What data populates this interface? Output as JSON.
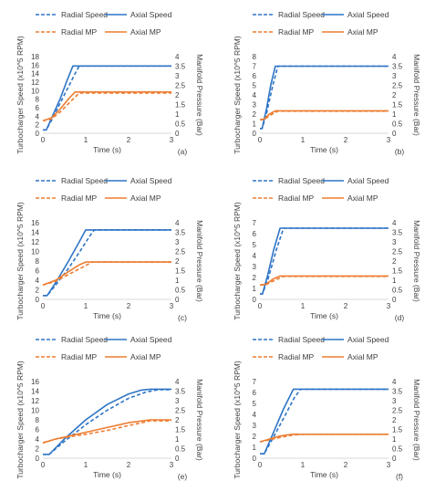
{
  "colors": {
    "radial": "#2e75c6",
    "axial": "#4a7fc1",
    "mp": "#ed7d31",
    "axis": "#d9d9d9",
    "text": "#404040"
  },
  "legend": {
    "radial_speed": "Radial Speed",
    "axial_speed": "Axial Speed",
    "radial_mp": "Radial MP",
    "axial_mp": "Axial MP"
  },
  "chart_data": [
    {
      "panel": "(a)",
      "type": "line",
      "xlabel": "Time (s)",
      "ylabel": "Turbocharger Speed (x10^5 RPM)",
      "y2label": "Manifold Pressure (Bar)",
      "xlim": [
        0,
        3
      ],
      "xticks": [
        0,
        1,
        2,
        3
      ],
      "ylim": [
        0,
        18
      ],
      "yticks": [
        0,
        2,
        4,
        6,
        8,
        10,
        12,
        14,
        16,
        18
      ],
      "y2lim": [
        0,
        4
      ],
      "y2ticks": [
        0,
        0.5,
        1,
        1.5,
        2,
        2.5,
        3,
        3.5,
        4
      ],
      "series": [
        {
          "name": "Radial Speed",
          "axis": "left",
          "style": "dashed",
          "color": "#2e75c6",
          "x": [
            0,
            0.08,
            0.2,
            0.4,
            0.6,
            0.75,
            0.85,
            3
          ],
          "y": [
            0.8,
            0.8,
            3.0,
            7.0,
            11.0,
            14.0,
            15.8,
            15.8
          ]
        },
        {
          "name": "Axial Speed",
          "axis": "left",
          "style": "solid",
          "color": "#2e75c6",
          "x": [
            0,
            0.08,
            0.2,
            0.4,
            0.55,
            0.7,
            3
          ],
          "y": [
            0.8,
            0.8,
            3.5,
            8.0,
            12.0,
            15.8,
            15.8
          ]
        },
        {
          "name": "Radial MP",
          "axis": "right",
          "style": "dashed",
          "color": "#ed7d31",
          "x": [
            0,
            0.2,
            0.4,
            0.6,
            0.85,
            3
          ],
          "y": [
            0.65,
            0.75,
            1.1,
            1.55,
            2.1,
            2.1
          ]
        },
        {
          "name": "Axial MP",
          "axis": "right",
          "style": "solid",
          "color": "#ed7d31",
          "x": [
            0,
            0.2,
            0.4,
            0.6,
            0.75,
            3
          ],
          "y": [
            0.65,
            0.8,
            1.25,
            1.8,
            2.15,
            2.15
          ]
        }
      ]
    },
    {
      "panel": "(b)",
      "type": "line",
      "xlabel": "Time (s)",
      "ylabel": "Turbocharger Speed (x10^5 RPM)",
      "y2label": "Manifold Pressure (Bar)",
      "xlim": [
        0,
        3
      ],
      "xticks": [
        0,
        1,
        2,
        3
      ],
      "ylim": [
        0,
        8
      ],
      "yticks": [
        0,
        1,
        2,
        3,
        4,
        5,
        6,
        7,
        8
      ],
      "y2lim": [
        0,
        4
      ],
      "y2ticks": [
        0,
        0.5,
        1,
        1.5,
        2,
        2.5,
        3,
        3.5,
        4
      ],
      "series": [
        {
          "name": "Radial Speed",
          "axis": "left",
          "style": "dashed",
          "color": "#2e75c6",
          "x": [
            0,
            0.05,
            0.15,
            0.3,
            0.42,
            3
          ],
          "y": [
            0.5,
            0.5,
            2.0,
            5.0,
            7.0,
            7.0
          ]
        },
        {
          "name": "Axial Speed",
          "axis": "left",
          "style": "solid",
          "color": "#2e75c6",
          "x": [
            0,
            0.05,
            0.15,
            0.25,
            0.36,
            3
          ],
          "y": [
            0.5,
            0.5,
            2.5,
            5.0,
            7.0,
            7.0
          ]
        },
        {
          "name": "Radial MP",
          "axis": "right",
          "style": "dashed",
          "color": "#ed7d31",
          "x": [
            0,
            0.1,
            0.25,
            0.42,
            3
          ],
          "y": [
            0.7,
            0.72,
            0.95,
            1.15,
            1.15
          ]
        },
        {
          "name": "Axial MP",
          "axis": "right",
          "style": "solid",
          "color": "#ed7d31",
          "x": [
            0,
            0.1,
            0.22,
            0.36,
            3
          ],
          "y": [
            0.7,
            0.75,
            1.0,
            1.17,
            1.17
          ]
        }
      ]
    },
    {
      "panel": "(c)",
      "type": "line",
      "xlabel": "Time (s)",
      "ylabel": "Turbocharger Speed (x10^5 RPM)",
      "y2label": "Manifold Pressure (Bar)",
      "xlim": [
        0,
        3
      ],
      "xticks": [
        0,
        1,
        2,
        3
      ],
      "ylim": [
        0,
        16
      ],
      "yticks": [
        0,
        2,
        4,
        6,
        8,
        10,
        12,
        14,
        16
      ],
      "y2lim": [
        0,
        4
      ],
      "y2ticks": [
        0,
        0.5,
        1,
        1.5,
        2,
        2.5,
        3,
        3.5,
        4
      ],
      "series": [
        {
          "name": "Radial Speed",
          "axis": "left",
          "style": "dashed",
          "color": "#2e75c6",
          "x": [
            0,
            0.1,
            0.3,
            0.6,
            0.9,
            1.1,
            1.2,
            3
          ],
          "y": [
            0.8,
            0.8,
            3.0,
            6.5,
            10.5,
            13.3,
            14.5,
            14.5
          ]
        },
        {
          "name": "Axial Speed",
          "axis": "left",
          "style": "solid",
          "color": "#2e75c6",
          "x": [
            0,
            0.1,
            0.3,
            0.6,
            0.85,
            1.0,
            3
          ],
          "y": [
            0.8,
            0.8,
            3.5,
            8.0,
            12.0,
            14.5,
            14.5
          ]
        },
        {
          "name": "Radial MP",
          "axis": "right",
          "style": "dashed",
          "color": "#ed7d31",
          "x": [
            0,
            0.3,
            0.6,
            0.9,
            1.15,
            3
          ],
          "y": [
            0.75,
            0.95,
            1.3,
            1.65,
            1.95,
            1.95
          ]
        },
        {
          "name": "Axial MP",
          "axis": "right",
          "style": "solid",
          "color": "#ed7d31",
          "x": [
            0,
            0.3,
            0.6,
            0.85,
            1.0,
            3
          ],
          "y": [
            0.75,
            1.0,
            1.45,
            1.8,
            1.95,
            1.95
          ]
        }
      ]
    },
    {
      "panel": "(d)",
      "type": "line",
      "xlabel": "Time (s)",
      "ylabel": "Turbocharger Speed (x10^5 RPM)",
      "y2label": "Manifold Pressure (Bar)",
      "xlim": [
        0,
        3
      ],
      "xticks": [
        0,
        1,
        2,
        3
      ],
      "ylim": [
        0,
        7
      ],
      "yticks": [
        0,
        1,
        2,
        3,
        4,
        5,
        6,
        7
      ],
      "y2lim": [
        0,
        4
      ],
      "y2ticks": [
        0,
        0.5,
        1,
        1.5,
        2,
        2.5,
        3,
        3.5,
        4
      ],
      "series": [
        {
          "name": "Radial Speed",
          "axis": "left",
          "style": "dashed",
          "color": "#2e75c6",
          "x": [
            0,
            0.06,
            0.2,
            0.38,
            0.55,
            3
          ],
          "y": [
            0.5,
            0.5,
            2.0,
            4.5,
            6.5,
            6.5
          ]
        },
        {
          "name": "Axial Speed",
          "axis": "left",
          "style": "solid",
          "color": "#2e75c6",
          "x": [
            0,
            0.06,
            0.18,
            0.32,
            0.47,
            3
          ],
          "y": [
            0.5,
            0.5,
            2.2,
            4.5,
            6.5,
            6.5
          ]
        },
        {
          "name": "Radial MP",
          "axis": "right",
          "style": "dashed",
          "color": "#ed7d31",
          "x": [
            0,
            0.15,
            0.35,
            0.55,
            3
          ],
          "y": [
            0.75,
            0.78,
            1.0,
            1.2,
            1.2
          ]
        },
        {
          "name": "Axial MP",
          "axis": "right",
          "style": "solid",
          "color": "#ed7d31",
          "x": [
            0,
            0.15,
            0.3,
            0.47,
            3
          ],
          "y": [
            0.75,
            0.8,
            1.05,
            1.22,
            1.22
          ]
        }
      ]
    },
    {
      "panel": "(e)",
      "type": "line",
      "xlabel": "Time (s)",
      "ylabel": "Turbocharger Speed (x10^5 RPM)",
      "y2label": "Manifold Pressure (Bar)",
      "xlim": [
        0,
        3
      ],
      "xticks": [
        0,
        1,
        2,
        3
      ],
      "ylim": [
        0,
        16
      ],
      "yticks": [
        0,
        2,
        4,
        6,
        8,
        10,
        12,
        14,
        16
      ],
      "y2lim": [
        0,
        4
      ],
      "y2ticks": [
        0,
        0.5,
        1,
        1.5,
        2,
        2.5,
        3,
        3.5,
        4
      ],
      "series": [
        {
          "name": "Radial Speed",
          "axis": "left",
          "style": "dashed",
          "color": "#2e75c6",
          "x": [
            0,
            0.15,
            0.5,
            1.0,
            1.5,
            2.0,
            2.4,
            2.7,
            3
          ],
          "y": [
            0.8,
            0.8,
            3.5,
            7.0,
            10.0,
            12.5,
            13.8,
            14.3,
            14.3
          ]
        },
        {
          "name": "Axial Speed",
          "axis": "left",
          "style": "solid",
          "color": "#2e75c6",
          "x": [
            0,
            0.15,
            0.5,
            1.0,
            1.5,
            2.0,
            2.3,
            2.5,
            3
          ],
          "y": [
            0.8,
            0.8,
            4.0,
            8.0,
            11.2,
            13.4,
            14.2,
            14.4,
            14.4
          ]
        },
        {
          "name": "Radial MP",
          "axis": "right",
          "style": "dashed",
          "color": "#ed7d31",
          "x": [
            0,
            0.3,
            0.7,
            1.0,
            1.5,
            2.0,
            2.5,
            3
          ],
          "y": [
            0.8,
            1.0,
            1.15,
            1.25,
            1.45,
            1.7,
            1.95,
            1.95
          ]
        },
        {
          "name": "Axial MP",
          "axis": "right",
          "style": "solid",
          "color": "#ed7d31",
          "x": [
            0,
            0.3,
            0.7,
            1.0,
            1.5,
            2.0,
            2.5,
            3
          ],
          "y": [
            0.8,
            1.0,
            1.2,
            1.35,
            1.6,
            1.85,
            2.0,
            2.0
          ]
        }
      ]
    },
    {
      "panel": "(f)",
      "type": "line",
      "xlabel": "Time (s)",
      "ylabel": "Turbocharger Speed (x10^5 RPM)",
      "y2label": "Manifold Pressure (Bar)",
      "xlim": [
        0,
        3
      ],
      "xticks": [
        0,
        1,
        2,
        3
      ],
      "ylim": [
        0,
        7
      ],
      "yticks": [
        0,
        1,
        2,
        3,
        4,
        5,
        6,
        7
      ],
      "y2lim": [
        0,
        4
      ],
      "y2ticks": [
        0,
        0.5,
        1,
        1.5,
        2,
        2.5,
        3,
        3.5,
        4
      ],
      "series": [
        {
          "name": "Radial Speed",
          "axis": "left",
          "style": "dashed",
          "color": "#2e75c6",
          "x": [
            0,
            0.1,
            0.3,
            0.6,
            0.8,
            0.95,
            3
          ],
          "y": [
            0.4,
            0.4,
            1.8,
            4.0,
            5.5,
            6.3,
            6.3
          ]
        },
        {
          "name": "Axial Speed",
          "axis": "left",
          "style": "solid",
          "color": "#2e75c6",
          "x": [
            0,
            0.1,
            0.3,
            0.55,
            0.78,
            3
          ],
          "y": [
            0.4,
            0.4,
            2.2,
            4.5,
            6.3,
            6.3
          ]
        },
        {
          "name": "Radial MP",
          "axis": "right",
          "style": "dashed",
          "color": "#ed7d31",
          "x": [
            0,
            0.2,
            0.5,
            0.75,
            0.95,
            3
          ],
          "y": [
            0.85,
            0.95,
            1.1,
            1.2,
            1.25,
            1.25
          ]
        },
        {
          "name": "Axial MP",
          "axis": "right",
          "style": "solid",
          "color": "#ed7d31",
          "x": [
            0,
            0.2,
            0.45,
            0.65,
            0.78,
            3
          ],
          "y": [
            0.85,
            0.98,
            1.15,
            1.22,
            1.25,
            1.25
          ]
        }
      ]
    }
  ]
}
